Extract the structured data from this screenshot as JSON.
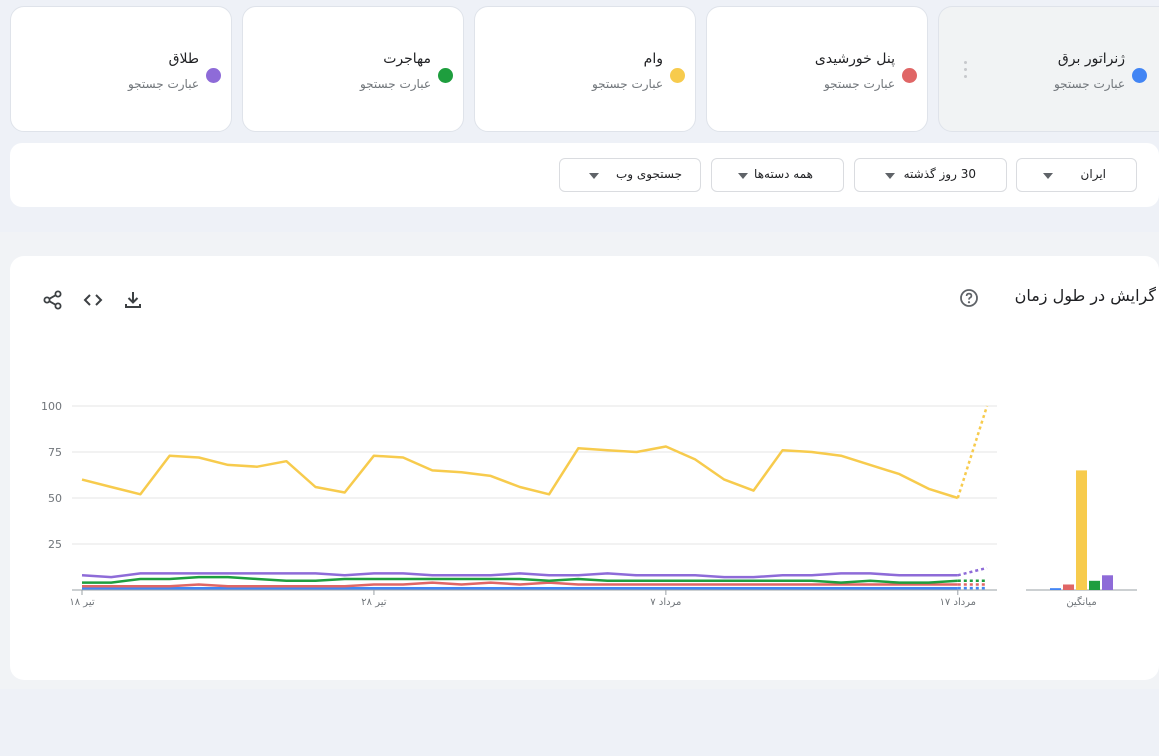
{
  "terms": [
    {
      "name": "ژنراتور برق",
      "sub": "عبارت جستجو",
      "color": "#4285f4"
    },
    {
      "name": "پنل خورشیدی",
      "sub": "عبارت جستجو",
      "color": "#e06666"
    },
    {
      "name": "وام",
      "sub": "عبارت جستجو",
      "color": "#f7cb4d"
    },
    {
      "name": "مهاجرت",
      "sub": "عبارت جستجو",
      "color": "#1e9e3e"
    },
    {
      "name": "طلاق",
      "sub": "عبارت جستجو",
      "color": "#8e6bd8"
    }
  ],
  "filters": {
    "region": "ایران",
    "period": "30 روز گذشته",
    "category": "همه دسته‌ها",
    "search_type": "جستجوی وب"
  },
  "chart_section": {
    "title": "گرایش در طول زمان"
  },
  "chart_data": {
    "type": "line",
    "ylim": [
      0,
      100
    ],
    "y_ticks": [
      "100",
      "75",
      "50",
      "25"
    ],
    "x_ticks": [
      "۱۸ تیر",
      "۲۸ تیر",
      "۷ مرداد",
      "۱۷ مرداد"
    ],
    "x_tick_index": [
      0,
      10,
      20,
      30
    ],
    "partial_last_point": true,
    "series": [
      {
        "name": "وام",
        "color": "#f7cb4d",
        "values": [
          60,
          56,
          52,
          73,
          72,
          68,
          67,
          70,
          56,
          53,
          73,
          72,
          65,
          64,
          62,
          56,
          52,
          77,
          76,
          75,
          78,
          71,
          60,
          54,
          76,
          75,
          73,
          68,
          63,
          55,
          50,
          100
        ]
      },
      {
        "name": "طلاق",
        "color": "#8e6bd8",
        "values": [
          8,
          7,
          9,
          9,
          9,
          9,
          9,
          9,
          9,
          8,
          9,
          9,
          8,
          8,
          8,
          9,
          8,
          8,
          9,
          8,
          8,
          8,
          7,
          7,
          8,
          8,
          9,
          9,
          8,
          8,
          8,
          12
        ]
      },
      {
        "name": "مهاجرت",
        "color": "#1e9e3e",
        "values": [
          4,
          4,
          6,
          6,
          7,
          7,
          6,
          5,
          5,
          6,
          6,
          6,
          6,
          6,
          6,
          6,
          5,
          6,
          5,
          5,
          5,
          5,
          5,
          5,
          5,
          5,
          4,
          5,
          4,
          4,
          5,
          5
        ]
      },
      {
        "name": "پنل خورشیدی",
        "color": "#e06666",
        "values": [
          2,
          2,
          2,
          2,
          3,
          2,
          2,
          2,
          2,
          2,
          3,
          3,
          4,
          3,
          4,
          3,
          4,
          3,
          3,
          3,
          3,
          3,
          3,
          3,
          3,
          3,
          3,
          3,
          3,
          3,
          3,
          3
        ]
      },
      {
        "name": "ژنراتور برق",
        "color": "#4285f4",
        "values": [
          1,
          1,
          1,
          1,
          1,
          1,
          1,
          1,
          1,
          1,
          1,
          1,
          1,
          1,
          1,
          1,
          1,
          1,
          1,
          1,
          1,
          1,
          1,
          1,
          1,
          1,
          1,
          1,
          1,
          1,
          1,
          1
        ]
      }
    ],
    "average": {
      "label": "میانگین",
      "bars": [
        {
          "name": "ژنراتور برق",
          "color": "#4285f4",
          "value": 1
        },
        {
          "name": "پنل خورشیدی",
          "color": "#e06666",
          "value": 3
        },
        {
          "name": "وام",
          "color": "#f7cb4d",
          "value": 65
        },
        {
          "name": "مهاجرت",
          "color": "#1e9e3e",
          "value": 5
        },
        {
          "name": "طلاق",
          "color": "#8e6bd8",
          "value": 8
        }
      ]
    }
  }
}
